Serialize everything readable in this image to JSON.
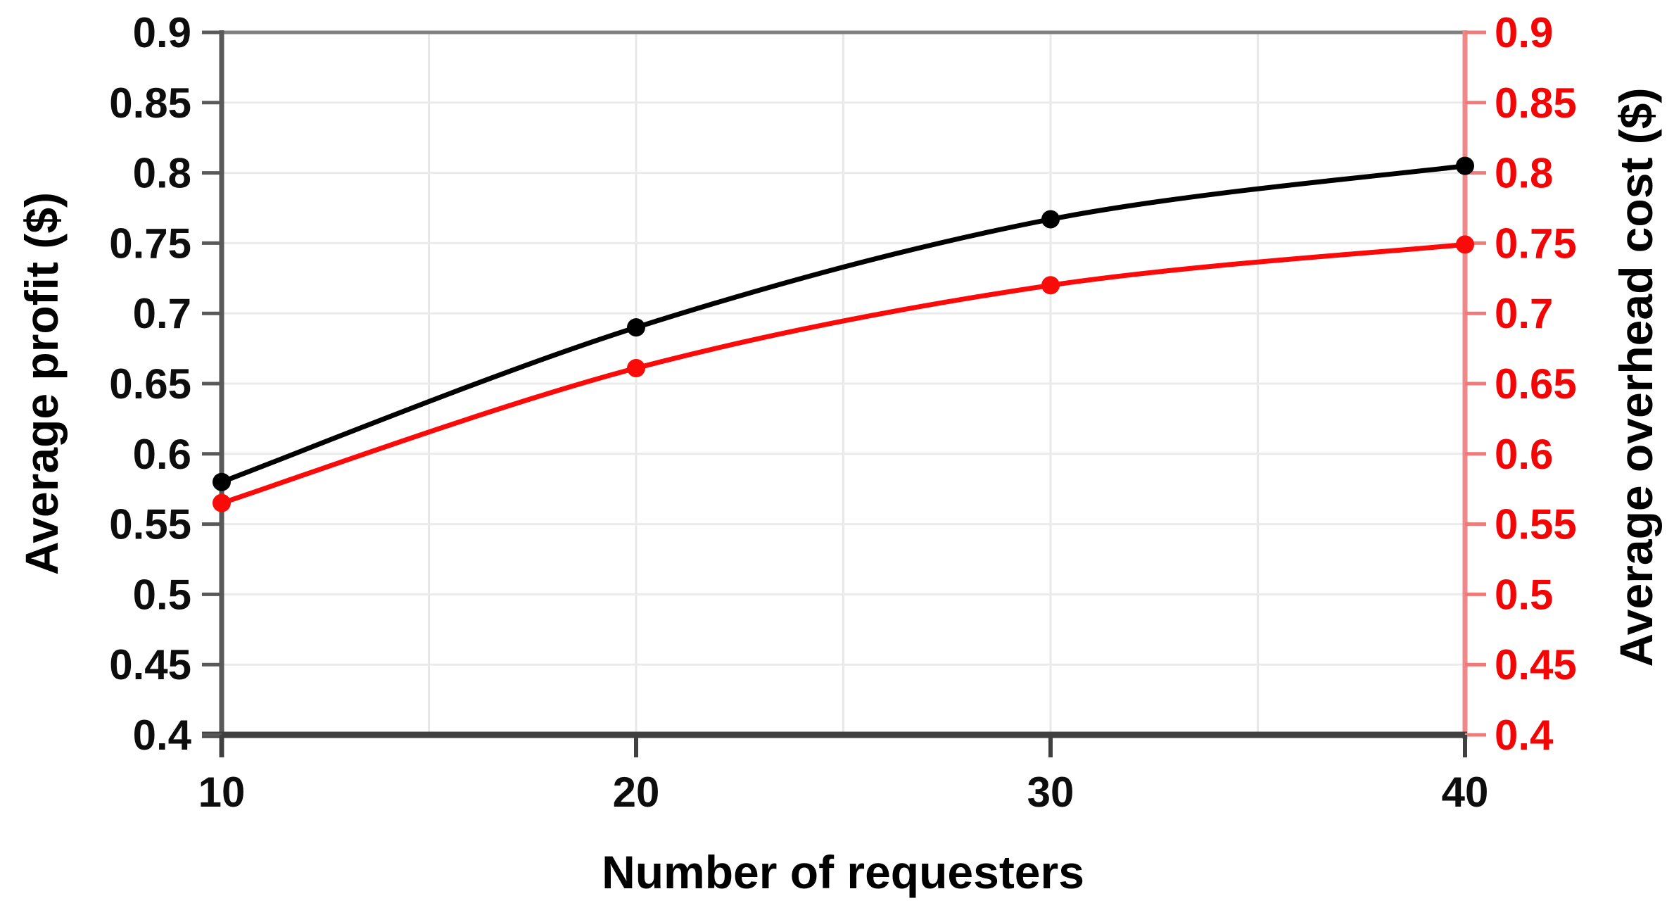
{
  "chart_data": {
    "type": "line",
    "x": [
      10,
      20,
      30,
      40
    ],
    "series": [
      {
        "name": "Average profit ($)",
        "axis": "left",
        "color": "#000000",
        "values": [
          0.58,
          0.69,
          0.767,
          0.805
        ]
      },
      {
        "name": "Average overhead cost ($)",
        "axis": "right",
        "color": "#fb0a0a",
        "values": [
          0.565,
          0.661,
          0.72,
          0.749
        ]
      }
    ],
    "title": "",
    "xlabel": "Number of requesters",
    "ylabel_left": "Average profit ($)",
    "ylabel_right": "Average overhead cost ($)",
    "xlim": [
      10,
      40
    ],
    "ylim": [
      0.4,
      0.9
    ],
    "y_tick_step": 0.05,
    "x_gridline_step": 5,
    "left_tick_labels": [
      "0.9",
      "0.85",
      "0.8",
      "0.75",
      "0.7",
      "0.65",
      "0.6",
      "0.55",
      "0.5",
      "0.45",
      "0.4"
    ],
    "right_tick_labels": [
      "0.9",
      "0.85",
      "0.8",
      "0.75",
      "0.7",
      "0.65",
      "0.6",
      "0.55",
      "0.5",
      "0.45",
      "0.4"
    ],
    "x_tick_labels": [
      "10",
      "20",
      "30",
      "40"
    ],
    "grid": true,
    "legend": "none",
    "marker": "circle",
    "smooth": true
  },
  "colors": {
    "background": "#ffffff",
    "left_axis": "#595959",
    "top_border": "#7f7f7f",
    "bottom_axis": "#404040",
    "right_axis": "#ee8989",
    "right_tick": "#f07a7a",
    "left_tick_label": "#0d0d0d",
    "x_tick_label": "#0d0d0d",
    "right_tick_label": "#f40505",
    "grid_horizontal": "#ebebeb",
    "grid_vertical": "#e8e8e8"
  }
}
